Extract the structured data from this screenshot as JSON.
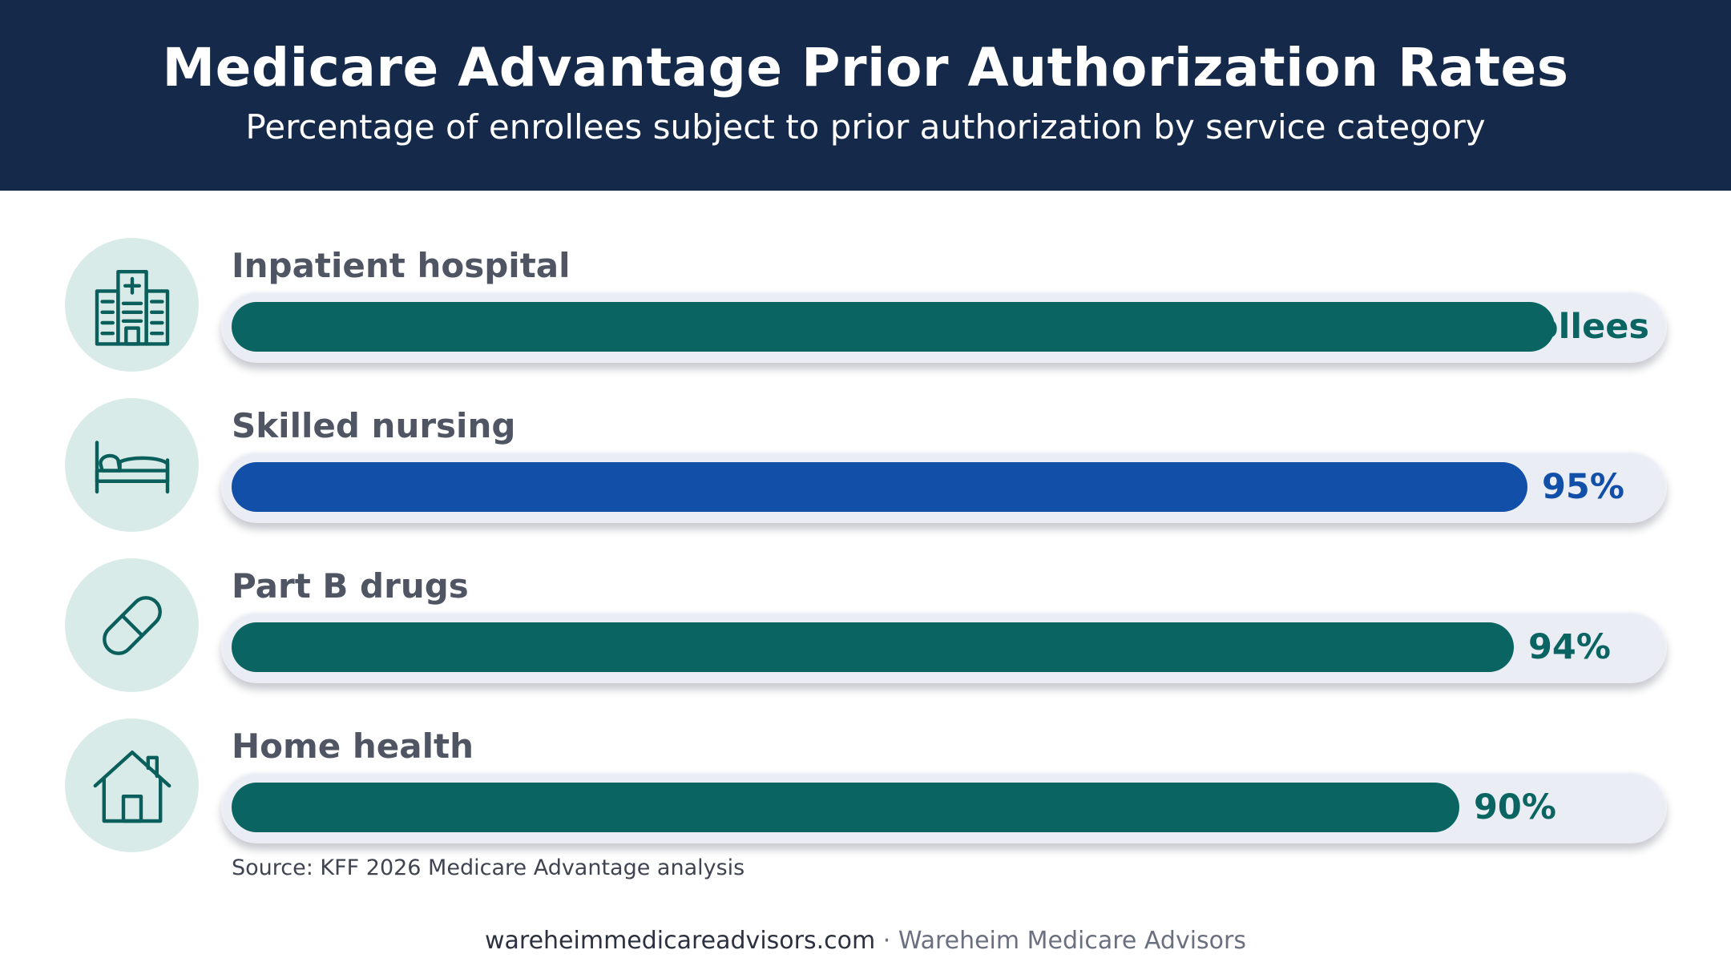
{
  "header": {
    "title": "Medicare Advantage Prior Authorization Rates",
    "subtitle": "Percentage of enrollees subject to prior authorization by service category"
  },
  "chart_data": {
    "type": "bar",
    "orientation": "horizontal",
    "categories": [
      "Inpatient hospital",
      "Skilled nursing",
      "Part B drugs",
      "Home health"
    ],
    "values": [
      97,
      95,
      94,
      90
    ],
    "value_labels": [
      "97% of enrollees",
      "95%",
      "94%",
      "90%"
    ],
    "icons": [
      "hospital-icon",
      "bed-icon",
      "pill-icon",
      "house-icon"
    ],
    "colors": [
      "#0a6562",
      "#124fa8",
      "#0a6562",
      "#0a6562"
    ],
    "label_colors": [
      "#0a6562",
      "#124fa8",
      "#0a6562",
      "#0a6562"
    ],
    "xlim": [
      0,
      100
    ]
  },
  "source": "Source: KFF 2026 Medicare Advantage analysis",
  "footer": {
    "site": "wareheimmedicareadvisors.com",
    "separator": " · ",
    "brand": "Wareheim Medicare Advisors"
  },
  "colors": {
    "header_bg": "#15294a",
    "track_bg": "#eaedf4",
    "icon_circle_bg": "#d8ebe8",
    "icon_stroke": "#0a5f5c"
  }
}
